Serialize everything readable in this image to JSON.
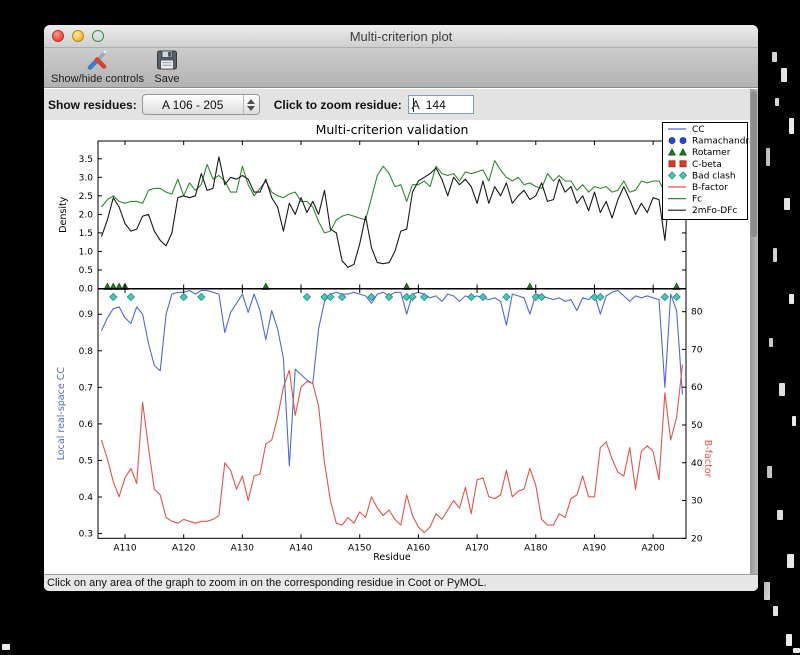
{
  "window": {
    "title": "Multi-criterion plot",
    "toolbar": {
      "show_hide_label": "Show/hide controls",
      "save_label": "Save"
    },
    "controls": {
      "show_residues_label": "Show residues:",
      "residue_range_value": "A 106 - 205",
      "zoom_residue_label": "Click to zoom residue:",
      "zoom_residue_value": "A  144"
    },
    "statusbar": {
      "text": "Click on any area of the graph to zoom in on the corresponding residue in Coot or PyMOL."
    }
  },
  "chart_data": {
    "type": "line",
    "title": "Multi-criterion validation",
    "xlabel": "Residue",
    "x_start": 106,
    "x_end": 205,
    "xlim": [
      105.4,
      205.6
    ],
    "x_tick_labels": [
      "A110",
      "A120",
      "A130",
      "A140",
      "A150",
      "A160",
      "A170",
      "A180",
      "A190",
      "A200"
    ],
    "x_tick_values": [
      110,
      120,
      130,
      140,
      150,
      160,
      170,
      180,
      190,
      200
    ],
    "legend_position": "upper right",
    "legend": [
      {
        "label": "CC",
        "type": "line",
        "color": "#5168d9"
      },
      {
        "label": "Ramachandran",
        "type": "circle",
        "color": "#2747cc",
        "edge": "#16309b"
      },
      {
        "label": "Rotamer",
        "type": "triangle",
        "color": "#217821",
        "edge": "#134f13"
      },
      {
        "label": "C-beta",
        "type": "square",
        "color": "#d63b2a",
        "edge": "#9c2418"
      },
      {
        "label": "Bad clash",
        "type": "diamond",
        "color": "#4cc4ba",
        "edge": "#1f8a80"
      },
      {
        "label": "B-factor",
        "type": "line",
        "color": "#e4544b"
      },
      {
        "label": "Fc",
        "type": "line",
        "color": "#2f8b2f"
      },
      {
        "label": "2mFo-DFc",
        "type": "line",
        "color": "#191919"
      }
    ],
    "top_plot": {
      "ylabel": "Density",
      "ylim": [
        0,
        3.98
      ],
      "yticks": [
        0.0,
        0.5,
        1.0,
        1.5,
        2.0,
        2.5,
        3.0,
        3.5
      ],
      "series": [
        {
          "name": "Fc",
          "color": "#2f8b2f",
          "values": [
            2.2,
            2.4,
            2.5,
            2.35,
            2.3,
            2.35,
            2.35,
            2.3,
            2.65,
            2.7,
            2.7,
            2.6,
            2.55,
            2.95,
            2.5,
            2.85,
            2.65,
            2.8,
            3.35,
            2.95,
            3.05,
            2.9,
            2.6,
            2.6,
            3.3,
            2.8,
            2.5,
            2.7,
            2.9,
            2.6,
            2.5,
            2.45,
            2.55,
            2.6,
            2.35,
            2.35,
            2.2,
            1.8,
            1.5,
            1.55,
            1.85,
            1.95,
            2.0,
            1.95,
            1.9,
            1.85,
            2.45,
            3.05,
            3.3,
            3.1,
            2.75,
            2.8,
            2.35,
            2.8,
            2.8,
            2.9,
            2.75,
            3.3,
            3.1,
            3.05,
            3.1,
            2.9,
            3.15,
            3.1,
            3.15,
            3.2,
            2.9,
            3.45,
            3.2,
            3.0,
            2.9,
            3.0,
            2.8,
            2.85,
            2.75,
            2.7,
            3.1,
            2.9,
            3.05,
            2.9,
            2.9,
            2.65,
            2.8,
            2.6,
            2.75,
            2.7,
            2.75,
            2.6,
            2.65,
            2.9,
            2.6,
            2.65,
            2.9,
            2.85,
            2.9,
            2.9,
            2.6,
            2.75,
            2.6,
            3.3
          ]
        },
        {
          "name": "2mFo-DFc",
          "color": "#191919",
          "values": [
            1.4,
            1.85,
            2.45,
            2.2,
            1.75,
            1.55,
            1.6,
            1.95,
            2.0,
            1.55,
            1.3,
            1.15,
            1.5,
            2.45,
            2.5,
            2.45,
            2.5,
            3.1,
            2.65,
            2.7,
            3.55,
            2.8,
            3.0,
            2.95,
            3.05,
            2.95,
            2.6,
            2.6,
            2.95,
            2.45,
            2.2,
            1.55,
            2.3,
            2.0,
            2.45,
            2.05,
            2.35,
            2.0,
            2.65,
            1.6,
            1.5,
            0.75,
            0.57,
            0.65,
            1.2,
            1.95,
            1.1,
            0.7,
            0.67,
            0.7,
            1.0,
            1.55,
            1.6,
            2.6,
            2.9,
            3.0,
            3.1,
            3.25,
            2.95,
            2.5,
            3.0,
            2.8,
            2.95,
            2.75,
            2.3,
            2.9,
            2.3,
            2.75,
            2.5,
            2.85,
            2.3,
            2.5,
            2.65,
            2.4,
            2.5,
            2.85,
            2.35,
            2.4,
            2.95,
            2.6,
            2.75,
            2.3,
            2.5,
            2.1,
            2.6,
            2.05,
            2.35,
            1.9,
            2.4,
            2.75,
            2.4,
            2.0,
            2.3,
            2.05,
            2.45,
            2.4,
            1.3,
            2.95,
            2.3,
            3.0
          ]
        }
      ]
    },
    "bottom_plot": {
      "ylabel_left": "Local real-space CC",
      "ylabel_left_color": "#5168d9",
      "ylabel_right": "B-factor",
      "ylabel_right_color": "#e4544b",
      "ylim_left": [
        0.287,
        0.969
      ],
      "yticks_left": [
        0.3,
        0.4,
        0.5,
        0.6,
        0.7,
        0.8,
        0.9
      ],
      "ylim_right": [
        20,
        86
      ],
      "yticks_right": [
        20,
        30,
        40,
        50,
        60,
        70,
        80
      ],
      "series": [
        {
          "name": "CC",
          "axis": "left",
          "color": "#5168d9",
          "values": [
            0.855,
            0.89,
            0.915,
            0.92,
            0.89,
            0.875,
            0.92,
            0.9,
            0.82,
            0.76,
            0.745,
            0.9,
            0.955,
            0.96,
            0.96,
            0.965,
            0.955,
            0.965,
            0.965,
            0.96,
            0.955,
            0.85,
            0.905,
            0.93,
            0.955,
            0.905,
            0.955,
            0.91,
            0.83,
            0.91,
            0.86,
            0.78,
            0.485,
            0.75,
            0.735,
            0.72,
            0.71,
            0.86,
            0.935,
            0.955,
            0.96,
            0.955,
            0.955,
            0.96,
            0.955,
            0.95,
            0.93,
            0.955,
            0.96,
            0.95,
            0.96,
            0.96,
            0.9,
            0.955,
            0.96,
            0.955,
            0.945,
            0.95,
            0.935,
            0.955,
            0.95,
            0.935,
            0.95,
            0.945,
            0.95,
            0.945,
            0.94,
            0.945,
            0.935,
            0.87,
            0.955,
            0.95,
            0.945,
            0.9,
            0.955,
            0.95,
            0.945,
            0.94,
            0.945,
            0.935,
            0.94,
            0.91,
            0.945,
            0.94,
            0.955,
            0.9,
            0.95,
            0.96,
            0.965,
            0.95,
            0.935,
            0.95,
            0.945,
            0.95,
            0.945,
            0.94,
            0.7,
            0.955,
            0.91,
            0.68
          ]
        },
        {
          "name": "B-factor",
          "axis": "right",
          "color": "#e4544b",
          "values": [
            46,
            41,
            35,
            31,
            36,
            38.5,
            34.5,
            56,
            44,
            33,
            31.5,
            25.5,
            24.5,
            24,
            25,
            24.5,
            24,
            24.5,
            24.5,
            25,
            26,
            40,
            38,
            33,
            36.5,
            30,
            36.5,
            37,
            45,
            46,
            52,
            60,
            64.5,
            52.5,
            60,
            61.5,
            61,
            55,
            40,
            30,
            24,
            23.5,
            25.5,
            24,
            27,
            25.5,
            31,
            28,
            26,
            27.5,
            25,
            23.5,
            31.5,
            26,
            23,
            21.5,
            23,
            26.5,
            25,
            27.5,
            30,
            28,
            33.5,
            26.5,
            35.5,
            36,
            31,
            30.5,
            31.5,
            38,
            31,
            32.5,
            33,
            38.5,
            34,
            25,
            23.5,
            23.5,
            26.5,
            25.5,
            30.5,
            31.5,
            36.5,
            31,
            31,
            44,
            45.5,
            41,
            37.5,
            36.5,
            44,
            33,
            43,
            44.5,
            43,
            35.5,
            58.5,
            46,
            52,
            66
          ]
        }
      ],
      "markers": {
        "rotamer_residues": [
          107,
          108,
          109,
          110,
          134,
          158,
          179,
          204
        ],
        "bad_clash_residues": [
          108,
          111,
          120,
          123,
          141,
          144,
          145,
          147,
          152,
          155,
          158,
          159,
          161,
          169,
          171,
          175,
          180,
          181,
          190,
          191,
          202,
          204
        ],
        "ramachandran_residues": [],
        "cbeta_residues": []
      }
    }
  }
}
